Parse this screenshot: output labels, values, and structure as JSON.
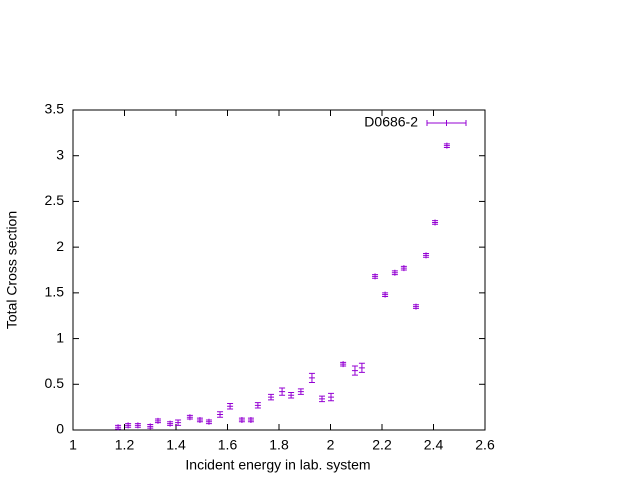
{
  "chart_data": {
    "type": "scatter",
    "xlabel": "Incident energy in lab. system",
    "ylabel": "Total Cross section",
    "xlim": [
      1,
      2.6
    ],
    "xticks": [
      1,
      1.2,
      1.4,
      1.6,
      1.8,
      2,
      2.2,
      2.4,
      2.6
    ],
    "ylim": [
      0,
      3.5
    ],
    "yticks": [
      0,
      0.5,
      1,
      1.5,
      2,
      2.5,
      3,
      3.5
    ],
    "legend": "top-right",
    "series": [
      {
        "name": "D0686-2",
        "color": "#9400d3",
        "x": [
          1.175,
          1.214,
          1.252,
          1.3,
          1.33,
          1.377,
          1.408,
          1.454,
          1.493,
          1.528,
          1.571,
          1.61,
          1.656,
          1.691,
          1.718,
          1.769,
          1.812,
          1.847,
          1.885,
          1.928,
          1.967,
          2.002,
          2.049,
          2.095,
          2.122,
          2.173,
          2.212,
          2.25,
          2.285,
          2.332,
          2.371,
          2.406,
          2.452
        ],
        "values": [
          0.03,
          0.05,
          0.05,
          0.04,
          0.1,
          0.07,
          0.08,
          0.14,
          0.11,
          0.09,
          0.17,
          0.26,
          0.11,
          0.11,
          0.27,
          0.36,
          0.42,
          0.38,
          0.42,
          0.57,
          0.34,
          0.36,
          0.72,
          0.65,
          0.68,
          1.68,
          1.48,
          1.72,
          1.77,
          1.35,
          1.91,
          2.27,
          3.11
        ],
        "errors": [
          0.02,
          0.02,
          0.02,
          0.02,
          0.02,
          0.02,
          0.03,
          0.02,
          0.02,
          0.02,
          0.03,
          0.03,
          0.02,
          0.02,
          0.03,
          0.03,
          0.04,
          0.03,
          0.03,
          0.05,
          0.03,
          0.04,
          0.02,
          0.05,
          0.05,
          0.02,
          0.02,
          0.02,
          0.02,
          0.02,
          0.02,
          0.02,
          0.02
        ]
      }
    ]
  }
}
